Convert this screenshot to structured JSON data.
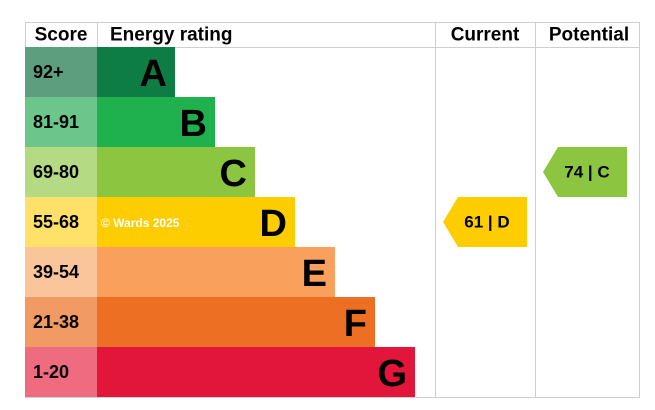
{
  "header": {
    "score": "Score",
    "energy_rating": "Energy rating",
    "current": "Current",
    "potential": "Potential"
  },
  "bands": [
    {
      "score": "92+",
      "letter": "A",
      "color": "#0e7d45",
      "score_color": "#5c9e7d"
    },
    {
      "score": "81-91",
      "letter": "B",
      "color": "#1eb14e",
      "score_color": "#6cc68b"
    },
    {
      "score": "69-80",
      "letter": "C",
      "color": "#8cc640",
      "score_color": "#b4da83"
    },
    {
      "score": "55-68",
      "letter": "D",
      "color": "#fecd00",
      "score_color": "#ffe068"
    },
    {
      "score": "39-54",
      "letter": "E",
      "color": "#f8a05c",
      "score_color": "#fbc59b"
    },
    {
      "score": "21-38",
      "letter": "F",
      "color": "#ec6f23",
      "score_color": "#f29a64"
    },
    {
      "score": "1-20",
      "letter": "G",
      "color": "#e2163a",
      "score_color": "#ee6b80"
    }
  ],
  "watermark": "© Wards 2025",
  "current": {
    "label": "61 | D",
    "color": "#fecd00"
  },
  "potential": {
    "label": "74 | C",
    "color": "#8cc640"
  }
}
